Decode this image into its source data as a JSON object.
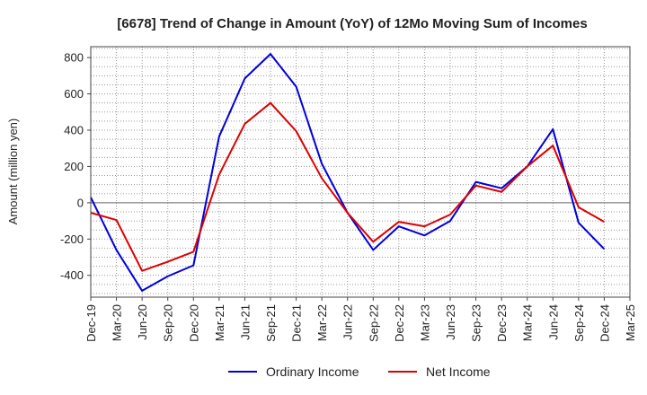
{
  "chart_data": {
    "type": "line",
    "title": "[6678]  Trend of Change in Amount (YoY) of 12Mo Moving Sum of Incomes",
    "ylabel": "Amount (million yen)",
    "xlabel": "",
    "categories": [
      "Dec-19",
      "Mar-20",
      "Jun-20",
      "Sep-20",
      "Dec-20",
      "Mar-21",
      "Jun-21",
      "Sep-21",
      "Dec-21",
      "Mar-22",
      "Jun-22",
      "Sep-22",
      "Dec-22",
      "Mar-23",
      "Jun-23",
      "Sep-23",
      "Dec-23",
      "Mar-24",
      "Jun-24",
      "Sep-24",
      "Dec-24",
      "Mar-25"
    ],
    "ylim": [
      -520,
      860
    ],
    "yticks": [
      -400,
      -200,
      0,
      200,
      400,
      600,
      800
    ],
    "grid": true,
    "legend_position": "bottom",
    "series": [
      {
        "name": "Ordinary Income",
        "color": "#0000dd",
        "values": [
          30,
          -260,
          -485,
          -405,
          -345,
          365,
          685,
          820,
          640,
          215,
          -55,
          -260,
          -130,
          -180,
          -100,
          115,
          80,
          200,
          405,
          -110,
          -255,
          null
        ]
      },
      {
        "name": "Net Income",
        "color": "#dd0000",
        "values": [
          -55,
          -95,
          -375,
          -325,
          -270,
          155,
          435,
          550,
          395,
          135,
          -55,
          -215,
          -105,
          -130,
          -65,
          95,
          60,
          200,
          315,
          -25,
          -105,
          null
        ]
      }
    ]
  }
}
